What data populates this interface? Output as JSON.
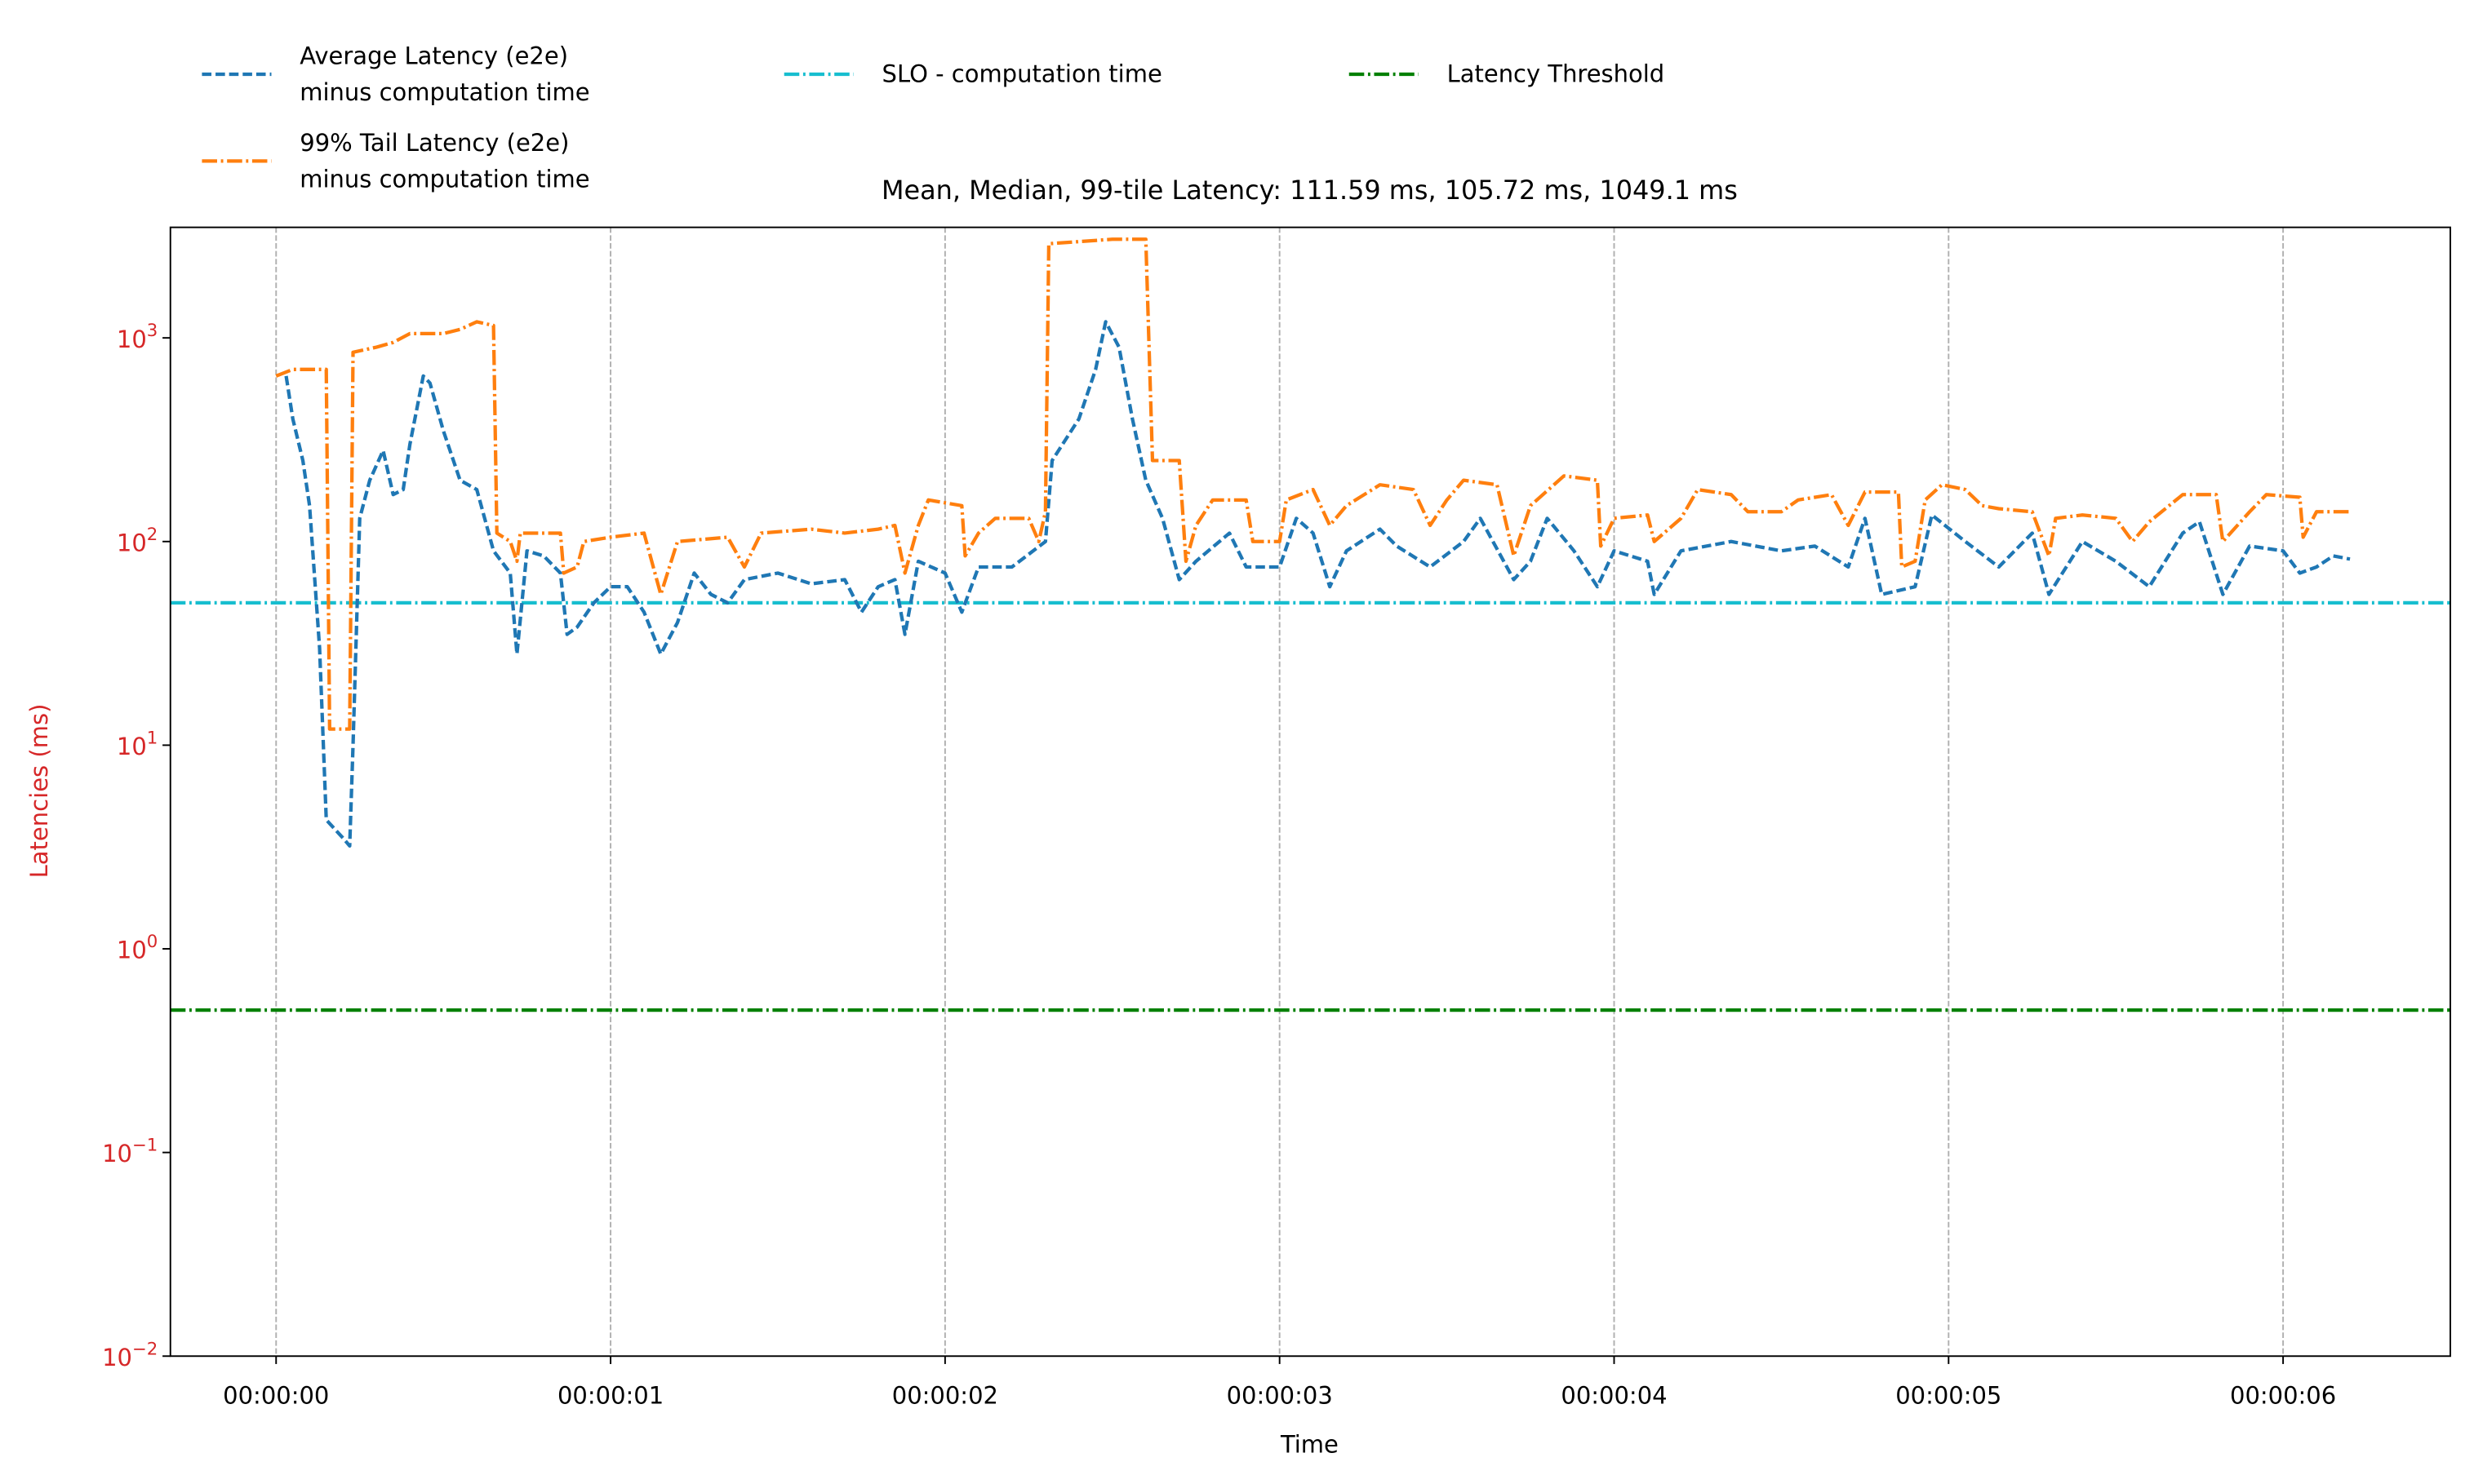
{
  "chart_data": {
    "type": "line",
    "title": "Mean, Median, 99-tile Latency: 111.59 ms, 105.72 ms, 1049.1 ms",
    "x_label": "Time",
    "y_label": "Latencies (ms)",
    "y_scale": "log",
    "label_color": "#d62728",
    "grid": "x",
    "legend": "upper left",
    "xlim": [
      -0.316,
      6.5
    ],
    "ylim": [
      0.01,
      3490
    ],
    "xticks": [
      {
        "value": 0,
        "label": "00:00:00"
      },
      {
        "value": 1,
        "label": "00:00:01"
      },
      {
        "value": 2,
        "label": "00:00:02"
      },
      {
        "value": 3,
        "label": "00:00:03"
      },
      {
        "value": 4,
        "label": "00:00:04"
      },
      {
        "value": 5,
        "label": "00:00:05"
      },
      {
        "value": 6,
        "label": "00:00:06"
      }
    ],
    "yticks": [
      {
        "value": 0.01,
        "label": "10",
        "exponent": "−2"
      },
      {
        "value": 0.1,
        "label": "10",
        "exponent": "−1"
      },
      {
        "value": 1,
        "label": "10",
        "exponent": "0"
      },
      {
        "value": 10,
        "label": "10",
        "exponent": "1"
      },
      {
        "value": 100,
        "label": "10",
        "exponent": "2"
      },
      {
        "value": 1000,
        "label": "10",
        "exponent": "3"
      }
    ],
    "series": [
      {
        "name": "Average Latency (e2e)\nminus computation time",
        "color": "#1f77b4",
        "linestyle": "dashed",
        "x": [
          0.03,
          0.05,
          0.08,
          0.1,
          0.13,
          0.15,
          0.2,
          0.22,
          0.23,
          0.25,
          0.28,
          0.32,
          0.35,
          0.38,
          0.4,
          0.44,
          0.46,
          0.5,
          0.55,
          0.6,
          0.65,
          0.7,
          0.72,
          0.75,
          0.8,
          0.85,
          0.87,
          0.9,
          0.95,
          1.0,
          1.05,
          1.1,
          1.15,
          1.2,
          1.25,
          1.3,
          1.35,
          1.4,
          1.5,
          1.6,
          1.7,
          1.75,
          1.8,
          1.85,
          1.88,
          1.92,
          2.0,
          2.05,
          2.1,
          2.2,
          2.3,
          2.32,
          2.4,
          2.45,
          2.48,
          2.52,
          2.56,
          2.6,
          2.65,
          2.7,
          2.75,
          2.85,
          2.9,
          3.0,
          3.05,
          3.1,
          3.15,
          3.2,
          3.3,
          3.35,
          3.45,
          3.55,
          3.6,
          3.7,
          3.75,
          3.8,
          3.88,
          3.95,
          4.0,
          4.1,
          4.12,
          4.2,
          4.35,
          4.5,
          4.6,
          4.7,
          4.75,
          4.8,
          4.9,
          4.95,
          5.05,
          5.15,
          5.25,
          5.3,
          5.4,
          5.5,
          5.6,
          5.7,
          5.75,
          5.82,
          5.9,
          6.0,
          6.05,
          6.1,
          6.15,
          6.2
        ],
        "values": [
          650,
          400,
          250,
          150,
          30,
          4.3,
          3.5,
          3.2,
          10,
          130,
          200,
          280,
          170,
          180,
          300,
          650,
          600,
          350,
          200,
          180,
          90,
          70,
          28,
          90,
          85,
          70,
          35,
          38,
          50,
          60,
          60,
          45,
          28,
          40,
          70,
          55,
          50,
          65,
          70,
          62,
          65,
          45,
          60,
          65,
          35,
          80,
          70,
          45,
          75,
          75,
          100,
          250,
          400,
          700,
          1200,
          900,
          400,
          200,
          130,
          65,
          80,
          110,
          75,
          75,
          130,
          110,
          60,
          90,
          115,
          95,
          75,
          100,
          130,
          65,
          80,
          130,
          90,
          60,
          90,
          80,
          55,
          90,
          100,
          90,
          95,
          75,
          130,
          55,
          60,
          135,
          100,
          75,
          110,
          55,
          100,
          80,
          60,
          110,
          125,
          55,
          95,
          90,
          70,
          75,
          85,
          82
        ]
      },
      {
        "name": "99% Tail Latency (e2e)\nminus computation time",
        "color": "#ff7f0e",
        "linestyle": "dashdot",
        "x": [
          0.0,
          0.05,
          0.15,
          0.16,
          0.2,
          0.22,
          0.23,
          0.3,
          0.35,
          0.4,
          0.5,
          0.55,
          0.6,
          0.65,
          0.66,
          0.7,
          0.72,
          0.73,
          0.85,
          0.86,
          0.9,
          0.92,
          1.0,
          1.1,
          1.15,
          1.2,
          1.35,
          1.4,
          1.45,
          1.6,
          1.7,
          1.8,
          1.85,
          1.88,
          1.92,
          1.95,
          2.05,
          2.06,
          2.1,
          2.15,
          2.25,
          2.28,
          2.3,
          2.31,
          2.5,
          2.6,
          2.62,
          2.7,
          2.72,
          2.75,
          2.8,
          2.9,
          2.92,
          3.0,
          3.02,
          3.1,
          3.15,
          3.2,
          3.3,
          3.4,
          3.45,
          3.5,
          3.55,
          3.65,
          3.7,
          3.75,
          3.85,
          3.95,
          3.96,
          4.0,
          4.1,
          4.12,
          4.2,
          4.25,
          4.35,
          4.4,
          4.5,
          4.55,
          4.65,
          4.7,
          4.75,
          4.85,
          4.86,
          4.9,
          4.93,
          4.98,
          5.05,
          5.1,
          5.15,
          5.25,
          5.3,
          5.32,
          5.4,
          5.5,
          5.55,
          5.6,
          5.7,
          5.8,
          5.82,
          5.9,
          5.95,
          6.05,
          6.06,
          6.1,
          6.2
        ],
        "values": [
          650,
          700,
          700,
          12,
          12,
          12,
          850,
          900,
          950,
          1050,
          1050,
          1100,
          1200,
          1150,
          110,
          100,
          80,
          110,
          110,
          70,
          75,
          100,
          105,
          110,
          55,
          100,
          105,
          75,
          110,
          115,
          110,
          115,
          120,
          70,
          120,
          160,
          150,
          85,
          110,
          130,
          130,
          100,
          140,
          2900,
          3050,
          3050,
          250,
          250,
          80,
          120,
          160,
          160,
          100,
          100,
          160,
          180,
          120,
          150,
          190,
          180,
          120,
          160,
          200,
          190,
          85,
          150,
          210,
          200,
          95,
          130,
          135,
          100,
          130,
          180,
          170,
          140,
          140,
          160,
          170,
          120,
          175,
          175,
          75,
          80,
          160,
          190,
          180,
          150,
          145,
          140,
          85,
          130,
          135,
          130,
          100,
          125,
          170,
          170,
          100,
          140,
          170,
          165,
          105,
          140,
          140
        ]
      }
    ],
    "hlines": [
      {
        "name": "SLO - computation time",
        "color": "#17becf",
        "linestyle": "dashdot",
        "value": 50
      },
      {
        "name": "Latency Threshold",
        "color": "#008000",
        "linestyle": "dashdot",
        "value": 0.5
      }
    ]
  }
}
